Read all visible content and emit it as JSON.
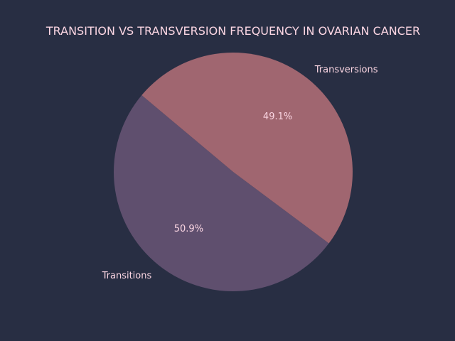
{
  "chart_data": {
    "type": "pie",
    "title": "TRANSITION VS TRANSVERSION FREQUENCY IN OVARIAN CANCER",
    "categories": [
      "Transitions",
      "Transversions"
    ],
    "values": [
      50.9,
      49.1
    ],
    "value_labels": [
      "50.9%",
      "49.1%"
    ],
    "colors": [
      "#5f4f6e",
      "#a06670"
    ],
    "start_angle_deg": 140,
    "direction": "counterclockwise",
    "legend": "none"
  },
  "theme": {
    "background": "#282e43",
    "text_color": "#fbd6e3",
    "percent_color": "#fbd6e3"
  }
}
